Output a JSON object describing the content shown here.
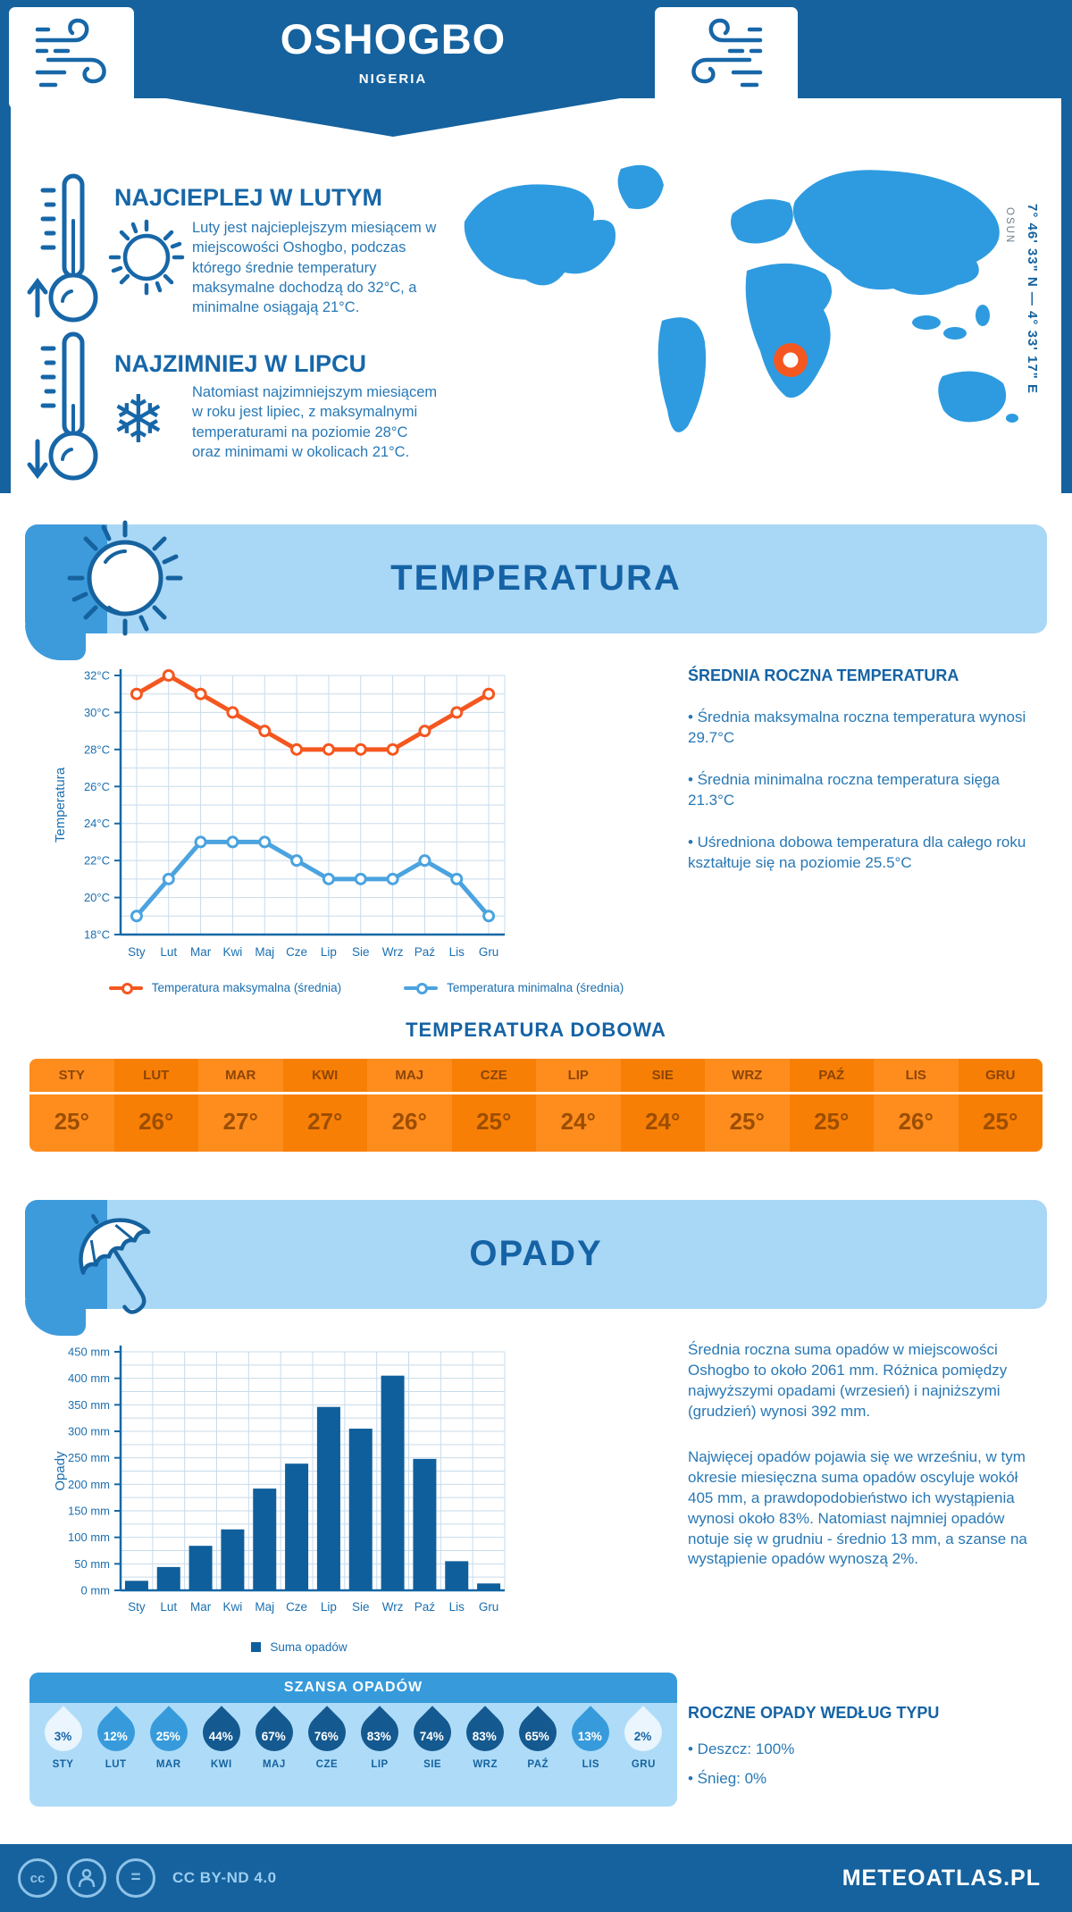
{
  "header": {
    "city": "OSHOGBO",
    "country": "NIGERIA"
  },
  "map": {
    "region_label": "OSUN",
    "coordinates": "7° 46' 33\" N — 4° 33' 17\" E"
  },
  "highlights": {
    "warmest": {
      "title": "NAJCIEPLEJ W LUTYM",
      "text": "Luty jest najcieplejszym miesiącem w miejscowości Oshogbo, podczas którego średnie temperatury maksymalne dochodzą do 32°C, a minimalne osiągają 21°C."
    },
    "coldest": {
      "title": "NAJZIMNIEJ W LIPCU",
      "text": "Natomiast najzimniejszym miesiącem w roku jest lipiec, z maksymalnymi temperaturami na poziomie 28°C oraz minimami w okolicach 21°C."
    }
  },
  "sections": {
    "temperature": "TEMPERATURA",
    "precipitation": "OPADY"
  },
  "annual_temperature": {
    "title": "ŚREDNIA ROCZNA TEMPERATURA",
    "bullets": [
      "• Średnia maksymalna roczna temperatura wynosi 29.7°C",
      "• Średnia minimalna roczna temperatura sięga 21.3°C",
      "• Uśredniona dobowa temperatura dla całego roku kształtuje się na poziomie 25.5°C"
    ]
  },
  "daily_temperature": {
    "title": "TEMPERATURA DOBOWA",
    "months": [
      "STY",
      "LUT",
      "MAR",
      "KWI",
      "MAJ",
      "CZE",
      "LIP",
      "SIE",
      "WRZ",
      "PAŹ",
      "LIS",
      "GRU"
    ],
    "values": [
      "25°",
      "26°",
      "27°",
      "27°",
      "26°",
      "25°",
      "24°",
      "24°",
      "25°",
      "25°",
      "26°",
      "25°"
    ]
  },
  "precipitation_summary": {
    "paragraphs": [
      "Średnia roczna suma opadów w miejscowości Oshogbo to około 2061 mm. Różnica pomiędzy najwyższymi opadami (wrzesień) i najniższymi (grudzień) wynosi 392 mm.",
      "Najwięcej opadów pojawia się we wrześniu, w tym okresie miesięczna suma opadów oscyluje wokół 405 mm, a prawdopodobieństwo ich wystąpienia wynosi około 83%. Natomiast najmniej opadów notuje się w grudniu - średnio 13 mm, a szanse na wystąpienie opadów wynoszą 2%."
    ]
  },
  "precipitation_type": {
    "title": "ROCZNE OPADY WEDŁUG TYPU",
    "bullets": [
      "• Deszcz: 100%",
      "• Śnieg: 0%"
    ]
  },
  "rain_chance": {
    "title": "SZANSA OPADÓW",
    "months": [
      "STY",
      "LUT",
      "MAR",
      "KWI",
      "MAJ",
      "CZE",
      "LIP",
      "SIE",
      "WRZ",
      "PAŹ",
      "LIS",
      "GRU"
    ],
    "values": [
      3,
      12,
      25,
      44,
      67,
      76,
      83,
      74,
      83,
      65,
      13,
      2
    ]
  },
  "footer": {
    "license": "CC BY-ND 4.0",
    "site": "METEOATLAS.PL"
  },
  "colors": {
    "primary_dark_blue": "#15629E",
    "banner_light_blue": "#A9D7F6",
    "banner_accent_blue": "#3D9BDC",
    "map_blue": "#2E9BE0",
    "marker_orange": "#F4571F",
    "line_max_orange": "#F4571F",
    "line_min_blue": "#4BA3DF",
    "bar_blue": "#0F5F9C",
    "table_orange_light": "#FF8D1E",
    "table_orange_dark": "#F87F05",
    "drop_light": "#EAF5FD",
    "drop_mid": "#379BDB",
    "drop_dark": "#14598F"
  },
  "chart_data": [
    {
      "id": "temperature",
      "type": "line",
      "title": "TEMPERATURA",
      "categories": [
        "Sty",
        "Lut",
        "Mar",
        "Kwi",
        "Maj",
        "Cze",
        "Lip",
        "Sie",
        "Wrz",
        "Paź",
        "Lis",
        "Gru"
      ],
      "series": [
        {
          "name": "Temperatura maksymalna (średnia)",
          "color": "#F4571F",
          "values": [
            31,
            32,
            31,
            30,
            29,
            28,
            28,
            28,
            28,
            29,
            30,
            31
          ]
        },
        {
          "name": "Temperatura minimalna (średnia)",
          "color": "#4BA3DF",
          "values": [
            19,
            21,
            23,
            23,
            23,
            22,
            21,
            21,
            21,
            22,
            21,
            19
          ]
        }
      ],
      "xlabel": "",
      "ylabel": "Temperatura",
      "ylim": [
        18,
        32
      ],
      "ytick_step": 2,
      "grid_step": 1,
      "ytick_suffix": "°C",
      "grid": true,
      "legend_position": "bottom"
    },
    {
      "id": "precipitation",
      "type": "bar",
      "title": "OPADY",
      "categories": [
        "Sty",
        "Lut",
        "Mar",
        "Kwi",
        "Maj",
        "Cze",
        "Lip",
        "Sie",
        "Wrz",
        "Paź",
        "Lis",
        "Gru"
      ],
      "series": [
        {
          "name": "Suma opadów",
          "color": "#0F5F9C",
          "values": [
            18,
            44,
            84,
            115,
            192,
            239,
            346,
            305,
            405,
            248,
            55,
            13
          ]
        }
      ],
      "xlabel": "",
      "ylabel": "Opady",
      "ylim": [
        0,
        450
      ],
      "ytick_step": 50,
      "grid_step": 25,
      "ytick_suffix": " mm",
      "grid": true,
      "legend_position": "bottom"
    }
  ]
}
